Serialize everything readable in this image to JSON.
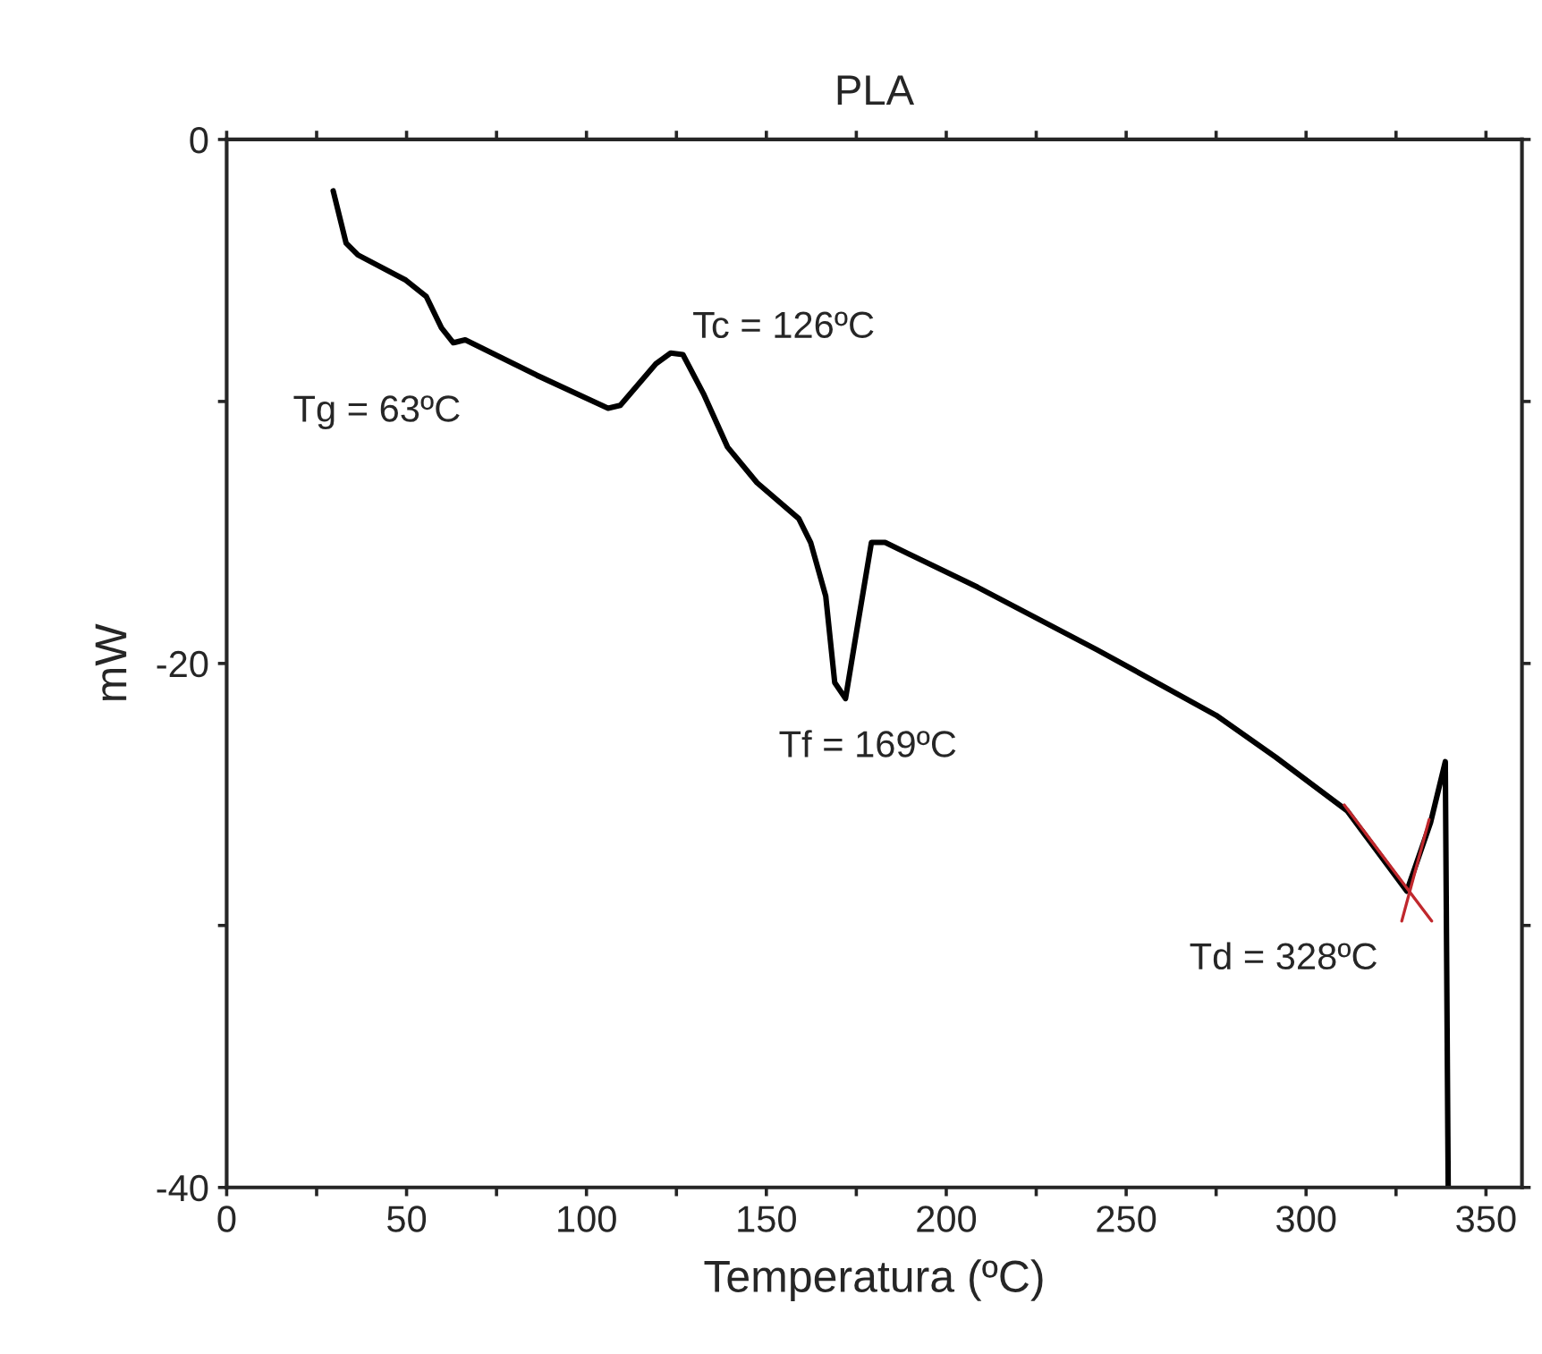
{
  "chart_data": {
    "type": "line",
    "title": "PLA",
    "xlabel": "Temperatura (ºC)",
    "ylabel": "mW",
    "xlim": [
      0,
      360
    ],
    "ylim": [
      -40,
      0
    ],
    "xticks": [
      0,
      {
        "value": 25,
        "label": null
      },
      50,
      {
        "value": 75,
        "label": null
      },
      100,
      {
        "value": 125,
        "label": null
      },
      150,
      {
        "value": 175,
        "label": null
      },
      200,
      {
        "value": 225,
        "label": null
      },
      250,
      {
        "value": 275,
        "label": null
      },
      300,
      {
        "value": 325,
        "label": null
      },
      350
    ],
    "yticks": [
      -40,
      {
        "value": -30,
        "label": null
      },
      -20,
      {
        "value": -10,
        "label": null
      },
      0
    ],
    "grid": false,
    "legend": false,
    "marker": "none",
    "line_style": "solid",
    "series": [
      {
        "color": "#000000",
        "x": [
          29.6,
          33.2,
          36.5,
          49.8,
          55.5,
          59.7,
          63,
          66.3,
          86.2,
          106,
          109.4,
          119.3,
          123.4,
          126.8,
          132.5,
          139.2,
          147.4,
          159,
          162.3,
          166.5,
          169,
          172,
          175.6,
          179.2,
          183,
          208.7,
          241.8,
          275,
          291.5,
          311.4,
          328,
          334.6,
          338.7,
          339.5
        ],
        "values": [
          -1.96,
          -3.96,
          -4.41,
          -5.37,
          -6.0,
          -7.19,
          -7.76,
          -7.65,
          -9.0,
          -10.26,
          -10.15,
          -8.56,
          -8.15,
          -8.21,
          -9.7,
          -11.74,
          -13.1,
          -14.47,
          -15.38,
          -17.43,
          -20.73,
          -21.34,
          -18.34,
          -15.38,
          -15.38,
          -17.09,
          -19.47,
          -21.98,
          -23.57,
          -25.62,
          -28.69,
          -26.07,
          -23.75,
          -40
        ]
      },
      {
        "color": "#c0282d",
        "x": [
          310.6,
          334.9
        ],
        "values": [
          -25.4,
          -29.83
        ]
      },
      {
        "color": "#c0282d",
        "x": [
          326.6,
          334.2
        ],
        "values": [
          -29.83,
          -25.96
        ]
      }
    ],
    "annotations": [
      "Tg = 63ºC",
      "Tc = 126ºC",
      "Tf = 169ºC",
      "Td = 328ºC"
    ]
  }
}
